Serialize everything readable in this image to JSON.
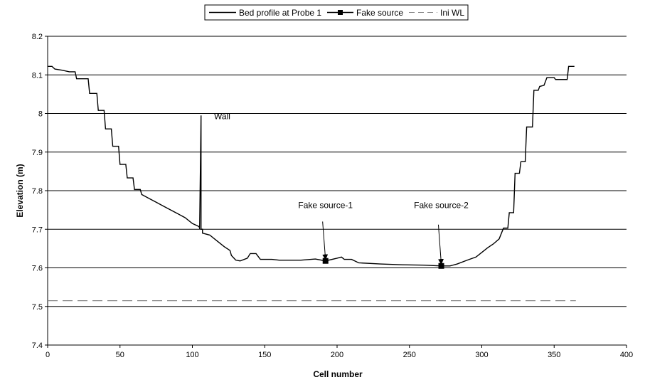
{
  "chart_data": {
    "type": "line",
    "xlabel": "Cell number",
    "ylabel": "Elevation (m)",
    "xlim": [
      0,
      400
    ],
    "ylim": [
      7.4,
      8.2
    ],
    "x_ticks": [
      "0",
      "50",
      "100",
      "150",
      "200",
      "250",
      "300",
      "350",
      "400"
    ],
    "y_ticks": [
      "7.4",
      "7.5",
      "7.6",
      "7.7",
      "7.8",
      "7.9",
      "8",
      "8.1",
      "8.2"
    ],
    "grid": "horizontal",
    "legend_position": "top-center",
    "legend": [
      "Bed profile at Probe 1",
      "Fake source",
      "Ini WL"
    ],
    "series": [
      {
        "name": "Bed profile at Probe 1",
        "style": "solid-step",
        "color": "#000000",
        "points": [
          [
            0,
            8.122
          ],
          [
            3,
            8.122
          ],
          [
            5,
            8.115
          ],
          [
            10,
            8.112
          ],
          [
            15,
            8.108
          ],
          [
            19,
            8.108
          ],
          [
            20,
            8.09
          ],
          [
            28,
            8.09
          ],
          [
            29,
            8.052
          ],
          [
            34,
            8.052
          ],
          [
            35,
            8.008
          ],
          [
            39,
            8.008
          ],
          [
            40,
            7.96
          ],
          [
            44,
            7.96
          ],
          [
            45,
            7.915
          ],
          [
            49,
            7.915
          ],
          [
            50,
            7.868
          ],
          [
            54,
            7.868
          ],
          [
            55,
            7.833
          ],
          [
            59,
            7.833
          ],
          [
            60,
            7.803
          ],
          [
            64,
            7.803
          ],
          [
            65,
            7.79
          ],
          [
            70,
            7.78
          ],
          [
            75,
            7.77
          ],
          [
            80,
            7.76
          ],
          [
            85,
            7.75
          ],
          [
            90,
            7.74
          ],
          [
            95,
            7.73
          ],
          [
            100,
            7.715
          ],
          [
            104,
            7.708
          ],
          [
            105,
            7.705
          ],
          [
            105,
            7.7
          ],
          [
            106,
            7.995
          ],
          [
            106,
            7.7
          ],
          [
            107,
            7.7
          ],
          [
            107,
            7.69
          ],
          [
            112,
            7.685
          ],
          [
            117,
            7.67
          ],
          [
            122,
            7.655
          ],
          [
            126,
            7.645
          ],
          [
            127,
            7.632
          ],
          [
            130,
            7.62
          ],
          [
            133,
            7.618
          ],
          [
            138,
            7.625
          ],
          [
            140,
            7.637
          ],
          [
            144,
            7.637
          ],
          [
            147,
            7.622
          ],
          [
            155,
            7.622
          ],
          [
            160,
            7.62
          ],
          [
            175,
            7.62
          ],
          [
            185,
            7.623
          ],
          [
            192,
            7.618
          ],
          [
            200,
            7.625
          ],
          [
            203,
            7.628
          ],
          [
            205,
            7.622
          ],
          [
            210,
            7.622
          ],
          [
            215,
            7.613
          ],
          [
            230,
            7.61
          ],
          [
            245,
            7.608
          ],
          [
            260,
            7.607
          ],
          [
            272,
            7.605
          ],
          [
            278,
            7.605
          ],
          [
            283,
            7.61
          ],
          [
            290,
            7.62
          ],
          [
            296,
            7.628
          ],
          [
            300,
            7.64
          ],
          [
            304,
            7.652
          ],
          [
            308,
            7.662
          ],
          [
            312,
            7.675
          ],
          [
            315,
            7.703
          ],
          [
            318,
            7.703
          ],
          [
            319,
            7.743
          ],
          [
            322,
            7.743
          ],
          [
            323,
            7.845
          ],
          [
            326,
            7.845
          ],
          [
            327,
            7.875
          ],
          [
            330,
            7.875
          ],
          [
            331,
            7.965
          ],
          [
            335,
            7.965
          ],
          [
            336,
            8.06
          ],
          [
            339,
            8.06
          ],
          [
            340,
            8.07
          ],
          [
            343,
            8.073
          ],
          [
            345,
            8.093
          ],
          [
            350,
            8.093
          ],
          [
            351,
            8.088
          ],
          [
            359,
            8.088
          ],
          [
            360,
            8.122
          ],
          [
            364,
            8.122
          ]
        ]
      },
      {
        "name": "Fake source",
        "style": "markers",
        "color": "#000000",
        "points": [
          [
            192,
            7.618
          ],
          [
            272,
            7.605
          ]
        ]
      },
      {
        "name": "Ini WL",
        "style": "dashed",
        "color": "#888888",
        "points": [
          [
            0,
            7.515
          ],
          [
            365,
            7.515
          ]
        ]
      }
    ],
    "annotations": [
      {
        "text": "Wall",
        "x": 115,
        "y": 7.985,
        "arrow": false
      },
      {
        "text": "Fake source-1",
        "x": 192,
        "y": 7.755,
        "arrow": true,
        "arrow_from": [
          190,
          7.72
        ],
        "arrow_to": [
          192,
          7.622
        ]
      },
      {
        "text": "Fake source-2",
        "x": 272,
        "y": 7.755,
        "arrow": true,
        "arrow_from": [
          270,
          7.712
        ],
        "arrow_to": [
          272,
          7.61
        ]
      }
    ]
  }
}
